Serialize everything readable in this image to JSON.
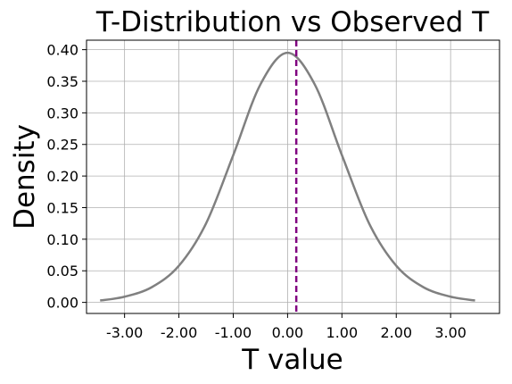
{
  "chart_data": {
    "type": "line",
    "title": "T-Distribution vs Observed T",
    "xlabel": "T value",
    "ylabel": "Density",
    "xlim": [
      -3.7,
      3.9
    ],
    "ylim": [
      -0.0175,
      0.415
    ],
    "xticks": [
      -3,
      -2,
      -1,
      0,
      1,
      2,
      3
    ],
    "xtick_labels": [
      "-3.00",
      "-2.00",
      "-1.00",
      "0.00",
      "1.00",
      "2.00",
      "3.00"
    ],
    "yticks": [
      0,
      0.05,
      0.1,
      0.15,
      0.2,
      0.25,
      0.3,
      0.35,
      0.4
    ],
    "ytick_labels": [
      "0.00",
      "0.05",
      "0.10",
      "0.15",
      "0.20",
      "0.25",
      "0.30",
      "0.35",
      "0.40"
    ],
    "grid": true,
    "series": [
      {
        "kind": "curve",
        "color": "#808080",
        "x": [
          -3.45,
          -3.0,
          -2.5,
          -2.0,
          -1.5,
          -1.0,
          -0.5,
          0.0,
          0.5,
          1.0,
          1.5,
          2.0,
          2.5,
          3.0,
          3.45
        ],
        "y": [
          0.003,
          0.009,
          0.024,
          0.058,
          0.125,
          0.233,
          0.345,
          0.395,
          0.345,
          0.233,
          0.125,
          0.058,
          0.024,
          0.009,
          0.003
        ]
      }
    ],
    "vline": {
      "x": 0.16,
      "color": "#800080",
      "style": "dashed"
    }
  }
}
